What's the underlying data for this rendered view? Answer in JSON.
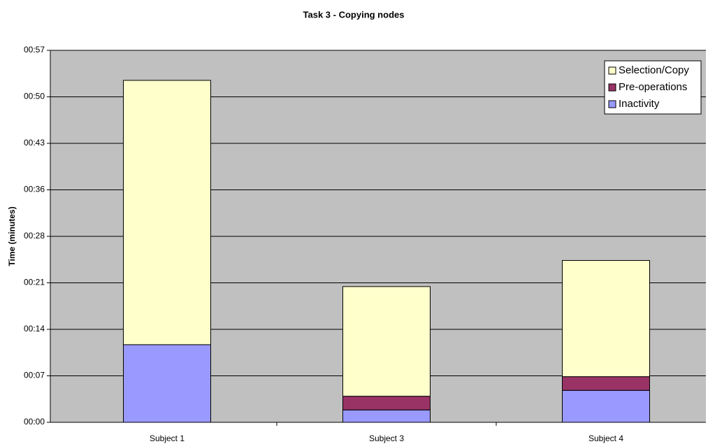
{
  "chart_data": {
    "type": "stacked_bar",
    "title": "Task 3 - Copying nodes",
    "y_label": "Time (minutes)",
    "categories": [
      "Subject 1",
      "Subject 3",
      "Subject 4"
    ],
    "series": [
      {
        "name": "Inactivity",
        "color": "#9999ff",
        "values": [
          11.9,
          1.9,
          4.9
        ]
      },
      {
        "name": "Pre-operations",
        "color": "#993366",
        "values": [
          0,
          2.1,
          2.1
        ]
      },
      {
        "name": "Selection/Copy",
        "color": "#ffffcc",
        "values": [
          40.5,
          16.8,
          17.8
        ]
      }
    ],
    "ylim": [
      0,
      57
    ],
    "yticks": [
      {
        "value": 0,
        "label": "00:00"
      },
      {
        "value": 7.125,
        "label": "00:07"
      },
      {
        "value": 14.25,
        "label": "00:14"
      },
      {
        "value": 21.375,
        "label": "00:21"
      },
      {
        "value": 28.5,
        "label": "00:28"
      },
      {
        "value": 35.625,
        "label": "00:36"
      },
      {
        "value": 42.75,
        "label": "00:43"
      },
      {
        "value": 49.875,
        "label": "00:50"
      },
      {
        "value": 57,
        "label": "00:57"
      }
    ],
    "grid": true,
    "legend": "top-right",
    "plot_background": "#c0c0c0"
  }
}
